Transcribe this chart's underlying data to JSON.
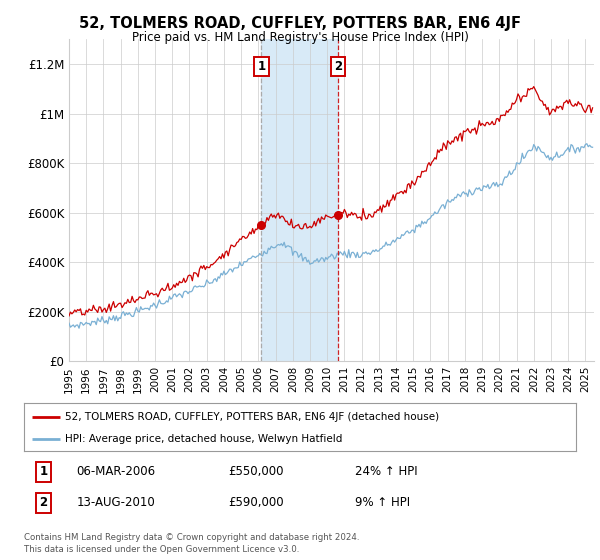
{
  "title": "52, TOLMERS ROAD, CUFFLEY, POTTERS BAR, EN6 4JF",
  "subtitle": "Price paid vs. HM Land Registry's House Price Index (HPI)",
  "legend_line1": "52, TOLMERS ROAD, CUFFLEY, POTTERS BAR, EN6 4JF (detached house)",
  "legend_line2": "HPI: Average price, detached house, Welwyn Hatfield",
  "transaction1_date": "06-MAR-2006",
  "transaction1_price": "£550,000",
  "transaction1_hpi": "24% ↑ HPI",
  "transaction1_year": 2006.17,
  "transaction1_value": 550000,
  "transaction2_date": "13-AUG-2010",
  "transaction2_price": "£590,000",
  "transaction2_hpi": "9% ↑ HPI",
  "transaction2_year": 2010.62,
  "transaction2_value": 590000,
  "ylim": [
    0,
    1300000
  ],
  "xlim_start": 1995.0,
  "xlim_end": 2025.5,
  "red_color": "#cc0000",
  "blue_color": "#7ab0d4",
  "shade_color": "#d8eaf7",
  "grid_color": "#cccccc",
  "background_color": "#ffffff",
  "footer": "Contains HM Land Registry data © Crown copyright and database right 2024.\nThis data is licensed under the Open Government Licence v3.0.",
  "yticks": [
    0,
    200000,
    400000,
    600000,
    800000,
    1000000,
    1200000
  ],
  "ytick_labels": [
    "£0",
    "£200K",
    "£400K",
    "£600K",
    "£800K",
    "£1M",
    "£1.2M"
  ],
  "xticks": [
    1995,
    1996,
    1997,
    1998,
    1999,
    2000,
    2001,
    2002,
    2003,
    2004,
    2005,
    2006,
    2007,
    2008,
    2009,
    2010,
    2011,
    2012,
    2013,
    2014,
    2015,
    2016,
    2017,
    2018,
    2019,
    2020,
    2021,
    2022,
    2023,
    2024,
    2025
  ],
  "hpi_keypoints_x": [
    1995,
    1997,
    1999,
    2001,
    2003,
    2005,
    2006,
    2007,
    2007.5,
    2008,
    2009,
    2010,
    2010.5,
    2011,
    2012,
    2013,
    2014,
    2015,
    2016,
    2017,
    2018,
    2019,
    2020,
    2021,
    2022,
    2023,
    2024,
    2025
  ],
  "hpi_keypoints_y": [
    140000,
    165000,
    200000,
    255000,
    310000,
    390000,
    430000,
    470000,
    480000,
    440000,
    400000,
    415000,
    430000,
    435000,
    430000,
    450000,
    490000,
    530000,
    580000,
    640000,
    680000,
    700000,
    710000,
    790000,
    870000,
    820000,
    850000,
    870000
  ],
  "red_keypoints_x": [
    1995,
    1997,
    1999,
    2001,
    2003,
    2005,
    2006,
    2006.17,
    2007,
    2008,
    2009,
    2010,
    2010.62,
    2011,
    2012,
    2013,
    2014,
    2015,
    2016,
    2017,
    2018,
    2019,
    2020,
    2021,
    2022,
    2023,
    2024,
    2025
  ],
  "red_keypoints_y": [
    190000,
    210000,
    250000,
    300000,
    380000,
    490000,
    545000,
    550000,
    600000,
    545000,
    545000,
    585000,
    590000,
    600000,
    580000,
    610000,
    670000,
    720000,
    800000,
    880000,
    920000,
    950000,
    970000,
    1050000,
    1100000,
    1000000,
    1050000,
    1020000
  ]
}
